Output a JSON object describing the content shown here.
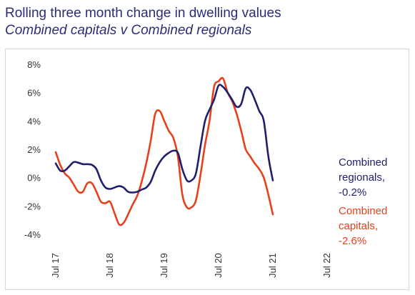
{
  "header": {
    "title": "Rolling three month change in dwelling values",
    "subtitle": "Combined capitals v Combined regionals"
  },
  "colors": {
    "regionals": "#1f1f6e",
    "capitals": "#e8401c",
    "title": "#2b2d7a"
  },
  "chart_data": {
    "type": "line",
    "title": "Rolling three month change in dwelling values",
    "subtitle": "Combined capitals v Combined regionals",
    "xlabel": "",
    "ylabel": "",
    "x_start": "2017-07",
    "x_end": "2022-07",
    "x_tick_labels": [
      "Jul 17",
      "Jul 18",
      "Jul 19",
      "Jul 20",
      "Jul 21",
      "Jul 22"
    ],
    "ylim": [
      -4,
      8
    ],
    "y_tick_labels": [
      "8%",
      "6%",
      "4%",
      "2%",
      "0%",
      "-2%",
      "-4%"
    ],
    "y_ticks": [
      8,
      6,
      4,
      2,
      0,
      -2,
      -4
    ],
    "grid": false,
    "legend": "direct labels at right end of lines",
    "series": [
      {
        "name": "Combined regionals",
        "end_label": "-0.2%",
        "color": "#1f1f6e",
        "points": [
          [
            "2017-07",
            1.0
          ],
          [
            "2017-08",
            0.5
          ],
          [
            "2017-09",
            0.5
          ],
          [
            "2017-10",
            0.8
          ],
          [
            "2017-11",
            1.1
          ],
          [
            "2017-12",
            1.05
          ],
          [
            "2018-01",
            0.95
          ],
          [
            "2018-02",
            0.95
          ],
          [
            "2018-03",
            0.9
          ],
          [
            "2018-04",
            0.6
          ],
          [
            "2018-05",
            -0.2
          ],
          [
            "2018-06",
            -0.7
          ],
          [
            "2018-07",
            -0.8
          ],
          [
            "2018-08",
            -0.7
          ],
          [
            "2018-09",
            -0.6
          ],
          [
            "2018-10",
            -0.7
          ],
          [
            "2018-11",
            -1.0
          ],
          [
            "2018-12",
            -1.05
          ],
          [
            "2019-01",
            -1.0
          ],
          [
            "2019-02",
            -0.85
          ],
          [
            "2019-03",
            -0.7
          ],
          [
            "2019-04",
            -0.3
          ],
          [
            "2019-05",
            0.5
          ],
          [
            "2019-06",
            1.1
          ],
          [
            "2019-07",
            1.5
          ],
          [
            "2019-08",
            1.75
          ],
          [
            "2019-09",
            1.9
          ],
          [
            "2019-10",
            1.75
          ],
          [
            "2019-11",
            0.6
          ],
          [
            "2019-12",
            -0.2
          ],
          [
            "2020-01",
            -0.2
          ],
          [
            "2020-02",
            0.3
          ],
          [
            "2020-03",
            2.2
          ],
          [
            "2020-04",
            4.0
          ],
          [
            "2020-05",
            4.8
          ],
          [
            "2020-06",
            5.5
          ],
          [
            "2020-07",
            6.5
          ],
          [
            "2020-08",
            6.4
          ],
          [
            "2020-09",
            6.0
          ],
          [
            "2020-10",
            5.5
          ],
          [
            "2020-11",
            5.0
          ],
          [
            "2020-12",
            5.2
          ],
          [
            "2021-01",
            6.3
          ],
          [
            "2021-02",
            6.2
          ],
          [
            "2021-03",
            5.5
          ],
          [
            "2021-04",
            4.7
          ],
          [
            "2021-05",
            4.0
          ],
          [
            "2021-06",
            1.5
          ],
          [
            "2021-07",
            -0.2
          ]
        ]
      },
      {
        "name": "Combined capitals",
        "end_label": "-2.6%",
        "color": "#e8401c",
        "points": [
          [
            "2017-07",
            1.8
          ],
          [
            "2017-08",
            0.9
          ],
          [
            "2017-09",
            0.3
          ],
          [
            "2017-10",
            0.0
          ],
          [
            "2017-11",
            -0.5
          ],
          [
            "2017-12",
            -1.0
          ],
          [
            "2018-01",
            -1.0
          ],
          [
            "2018-02",
            -0.4
          ],
          [
            "2018-03",
            -0.4
          ],
          [
            "2018-04",
            -1.0
          ],
          [
            "2018-05",
            -1.7
          ],
          [
            "2018-06",
            -1.8
          ],
          [
            "2018-07",
            -1.7
          ],
          [
            "2018-08",
            -2.5
          ],
          [
            "2018-09",
            -3.3
          ],
          [
            "2018-10",
            -3.2
          ],
          [
            "2018-11",
            -2.6
          ],
          [
            "2018-12",
            -1.9
          ],
          [
            "2019-01",
            -1.3
          ],
          [
            "2019-02",
            -0.3
          ],
          [
            "2019-03",
            1.0
          ],
          [
            "2019-04",
            2.6
          ],
          [
            "2019-05",
            4.5
          ],
          [
            "2019-06",
            4.7
          ],
          [
            "2019-07",
            4.0
          ],
          [
            "2019-08",
            3.3
          ],
          [
            "2019-09",
            2.8
          ],
          [
            "2019-10",
            1.5
          ],
          [
            "2019-11",
            -1.2
          ],
          [
            "2019-12",
            -2.1
          ],
          [
            "2020-01",
            -2.1
          ],
          [
            "2020-02",
            -1.6
          ],
          [
            "2020-03",
            0.2
          ],
          [
            "2020-04",
            2.3
          ],
          [
            "2020-05",
            4.0
          ],
          [
            "2020-06",
            6.4
          ],
          [
            "2020-07",
            6.8
          ],
          [
            "2020-08",
            7.0
          ],
          [
            "2020-09",
            6.0
          ],
          [
            "2020-10",
            5.4
          ],
          [
            "2020-11",
            4.5
          ],
          [
            "2020-12",
            3.3
          ],
          [
            "2021-01",
            2.0
          ],
          [
            "2021-02",
            1.5
          ],
          [
            "2021-03",
            1.0
          ],
          [
            "2021-04",
            0.6
          ],
          [
            "2021-05",
            0.0
          ],
          [
            "2021-06",
            -1.2
          ],
          [
            "2021-07",
            -2.6
          ]
        ]
      }
    ]
  }
}
